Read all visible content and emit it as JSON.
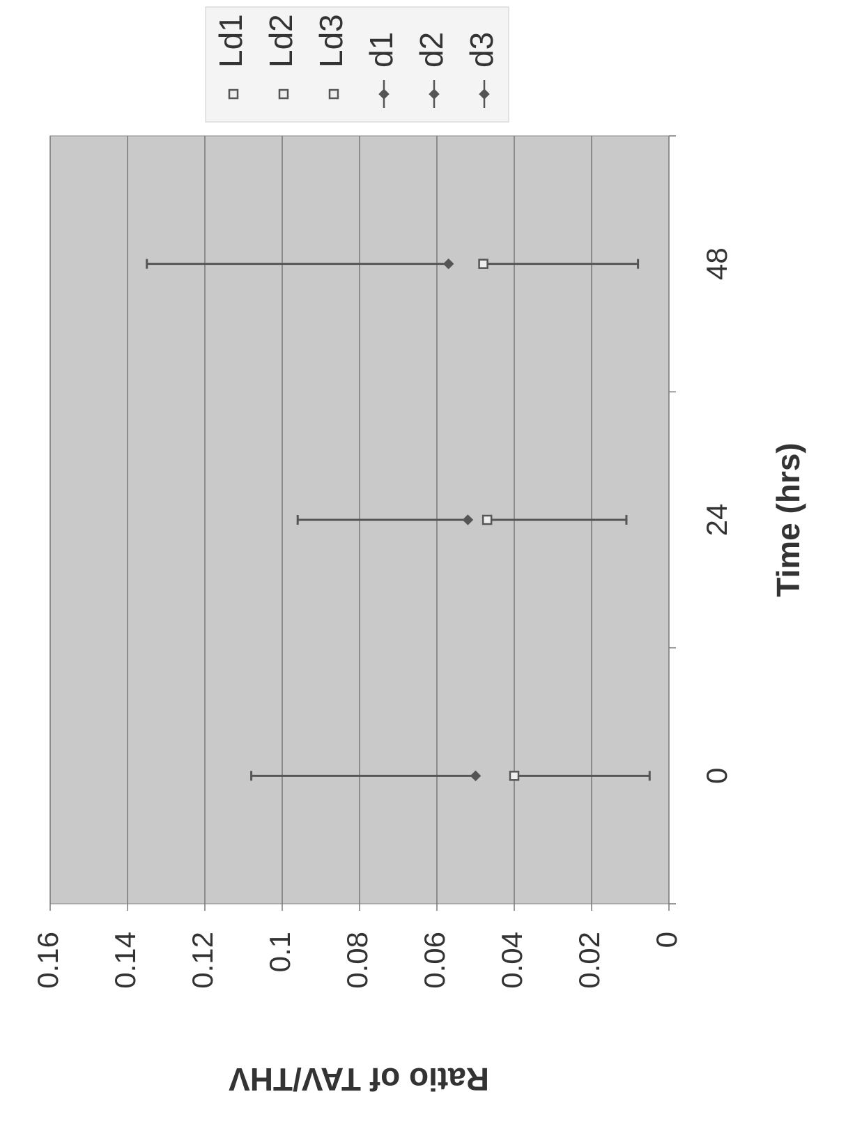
{
  "chart_data": {
    "type": "scatter",
    "xlabel": "Time (hrs)",
    "ylabel": "Ratio of TAV/THV",
    "categories": [
      "0",
      "24",
      "48"
    ],
    "ylim": [
      0,
      0.16
    ],
    "yticks": [
      0,
      0.02,
      0.04,
      0.06,
      0.08,
      0.1,
      0.12,
      0.14,
      0.16
    ],
    "grid": true,
    "legend": "right",
    "series": [
      {
        "name": "Ld1",
        "color": "#555555",
        "marker": "square",
        "values": [
          0.04,
          null,
          null
        ],
        "error_minus": [
          0.035,
          null,
          null
        ]
      },
      {
        "name": "Ld2",
        "color": "#555555",
        "marker": "square",
        "values": [
          null,
          0.047,
          null
        ],
        "error_minus": [
          null,
          0.036,
          null
        ]
      },
      {
        "name": "Ld3",
        "color": "#555555",
        "marker": "square",
        "values": [
          null,
          null,
          0.048
        ],
        "error_minus": [
          null,
          null,
          0.04
        ]
      },
      {
        "name": "d1",
        "color": "#555555",
        "marker": "diamond",
        "values": [
          0.05,
          null,
          null
        ],
        "error_plus": [
          0.058,
          null,
          null
        ]
      },
      {
        "name": "d2",
        "color": "#555555",
        "marker": "diamond",
        "values": [
          null,
          0.052,
          null
        ],
        "error_plus": [
          null,
          0.044,
          null
        ]
      },
      {
        "name": "d3",
        "color": "#555555",
        "marker": "diamond",
        "values": [
          null,
          null,
          0.057
        ],
        "error_plus": [
          null,
          null,
          0.078
        ]
      }
    ]
  }
}
